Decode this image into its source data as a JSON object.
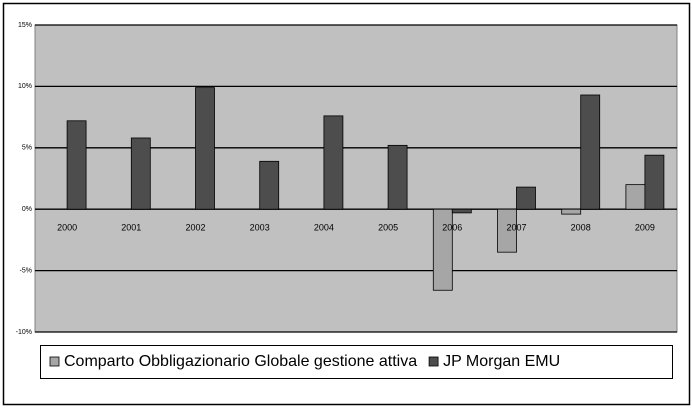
{
  "chart_data": {
    "type": "bar",
    "categories": [
      "2000",
      "2001",
      "2002",
      "2003",
      "2004",
      "2005",
      "2006",
      "2007",
      "2008",
      "2009"
    ],
    "series": [
      {
        "name": "Comparto Obbligazionario Globale gestione attiva",
        "color": "#a6a6a6",
        "values": [
          null,
          null,
          null,
          null,
          null,
          null,
          -6.6,
          -3.5,
          -0.4,
          2.0
        ]
      },
      {
        "name": "JP Morgan EMU",
        "color": "#4d4d4d",
        "values": [
          7.2,
          5.8,
          9.9,
          3.9,
          7.6,
          5.2,
          -0.3,
          1.8,
          9.3,
          4.4
        ]
      }
    ],
    "ylim": [
      -10,
      15
    ],
    "yticks": [
      {
        "value": -10,
        "label": "-10%"
      },
      {
        "value": -5,
        "label": "-5%"
      },
      {
        "value": 0,
        "label": "0%"
      },
      {
        "value": 5,
        "label": "5%"
      },
      {
        "value": 10,
        "label": "10%"
      },
      {
        "value": 15,
        "label": "15%"
      }
    ],
    "grid": true
  }
}
